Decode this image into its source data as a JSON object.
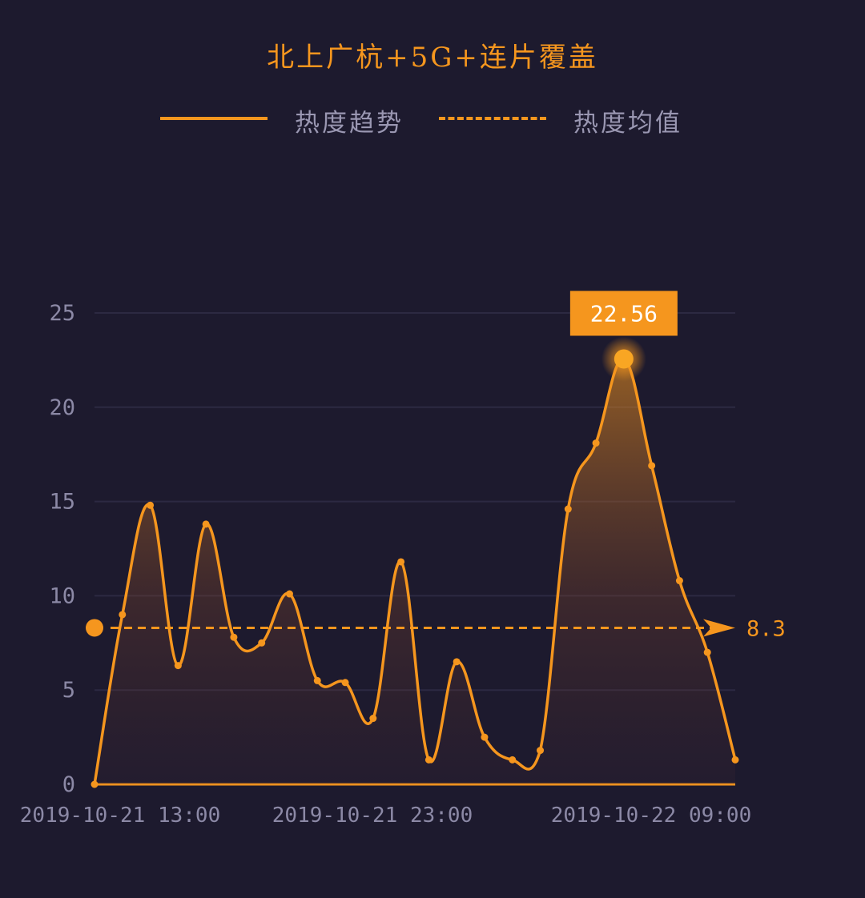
{
  "colors": {
    "background": "#1d1a2e",
    "accent": "#f5961e",
    "text_muted": "#8c89a6",
    "grid": "#2c2942"
  },
  "chart_data": {
    "type": "area",
    "title": "北上广杭+5G+连片覆盖",
    "legend": [
      "热度趋势",
      "热度均值"
    ],
    "legend_placement": "top-center",
    "y_ticks": [
      "0",
      "5",
      "10",
      "15",
      "20",
      "25"
    ],
    "ylim": [
      0,
      25
    ],
    "x_tick_labels": [
      "2019-10-21 13:00",
      "2019-10-21 23:00",
      "2019-10-22 09:00"
    ],
    "grid": true,
    "series": [
      {
        "name": "热度趋势",
        "values": [
          0,
          9,
          14.8,
          6.3,
          13.8,
          7.8,
          7.5,
          10.1,
          5.5,
          5.4,
          3.5,
          11.8,
          1.3,
          6.5,
          2.5,
          1.3,
          1.8,
          14.6,
          18.1,
          22.56,
          16.9,
          10.8,
          7,
          1.3
        ]
      }
    ],
    "average": {
      "value": 8.3,
      "label": "8.3"
    },
    "peak_label": "22.56",
    "peak_index": 19
  }
}
